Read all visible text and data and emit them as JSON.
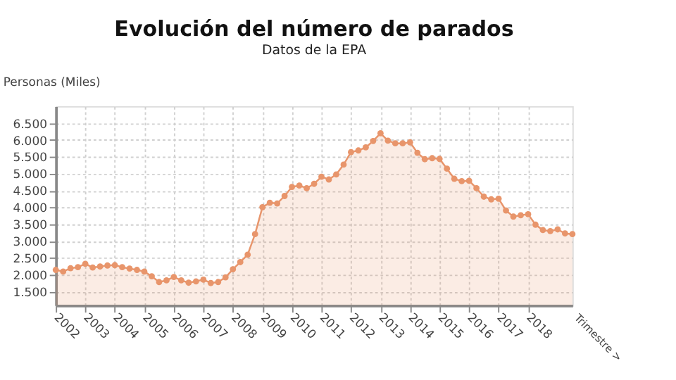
{
  "chart_data": {
    "type": "area",
    "title": "Evolución del número de parados",
    "subtitle": "Datos de la EPA",
    "ylabel": "Personas (Miles)",
    "xlabel": "Trimestre >",
    "x": [
      2002,
      2002.25,
      2002.5,
      2002.75,
      2003,
      2003.25,
      2003.5,
      2003.75,
      2004,
      2004.25,
      2004.5,
      2004.75,
      2005,
      2005.25,
      2005.5,
      2005.75,
      2006,
      2006.25,
      2006.5,
      2006.75,
      2007,
      2007.25,
      2007.5,
      2007.75,
      2008,
      2008.25,
      2008.5,
      2008.75,
      2009,
      2009.25,
      2009.5,
      2009.75,
      2010,
      2010.25,
      2010.5,
      2010.75,
      2011,
      2011.25,
      2011.5,
      2011.75,
      2012,
      2012.25,
      2012.5,
      2012.75,
      2013,
      2013.25,
      2013.5,
      2013.75,
      2014,
      2014.25,
      2014.5,
      2014.75,
      2015,
      2015.25,
      2015.5,
      2015.75,
      2016,
      2016.25,
      2016.5,
      2016.75,
      2017,
      2017.25,
      2017.5,
      2017.75,
      2018,
      2018.25,
      2018.5,
      2018.75,
      2019,
      2019.25,
      2019.5
    ],
    "series": [
      {
        "color": "#e8956b",
        "values": [
          2150,
          2100,
          2200,
          2230,
          2330,
          2220,
          2250,
          2280,
          2290,
          2230,
          2190,
          2150,
          2100,
          1960,
          1790,
          1840,
          1940,
          1840,
          1770,
          1810,
          1860,
          1760,
          1790,
          1930,
          2170,
          2380,
          2600,
          3210,
          4010,
          4140,
          4120,
          4340,
          4610,
          4650,
          4570,
          4700,
          4910,
          4830,
          4980,
          5270,
          5640,
          5690,
          5780,
          5970,
          6200,
          5980,
          5900,
          5900,
          5930,
          5620,
          5430,
          5460,
          5440,
          5150,
          4850,
          4780,
          4790,
          4570,
          4320,
          4240,
          4260,
          3910,
          3730,
          3770,
          3800,
          3490,
          3330,
          3300,
          3350,
          3230,
          3210
        ]
      }
    ],
    "xlim": [
      2002,
      2019.5
    ],
    "xticks": [
      2002,
      2003,
      2004,
      2005,
      2006,
      2007,
      2008,
      2009,
      2010,
      2011,
      2012,
      2013,
      2014,
      2015,
      2016,
      2017,
      2018
    ],
    "ylim": [
      1100,
      7000
    ],
    "yticks": [
      {
        "value": 1500,
        "label": "1.500"
      },
      {
        "value": 2000,
        "label": "2.000"
      },
      {
        "value": 2500,
        "label": "2.500"
      },
      {
        "value": 3000,
        "label": "3.000"
      },
      {
        "value": 3500,
        "label": "3.500"
      },
      {
        "value": 4000,
        "label": "4.000"
      },
      {
        "value": 4500,
        "label": "4.500"
      },
      {
        "value": 5000,
        "label": "5.000"
      },
      {
        "value": 5500,
        "label": "5.500"
      },
      {
        "value": 6000,
        "label": "6.000"
      },
      {
        "value": 6500,
        "label": "6.500"
      }
    ],
    "grid": true,
    "marker": "circle",
    "line_style": "solid"
  }
}
